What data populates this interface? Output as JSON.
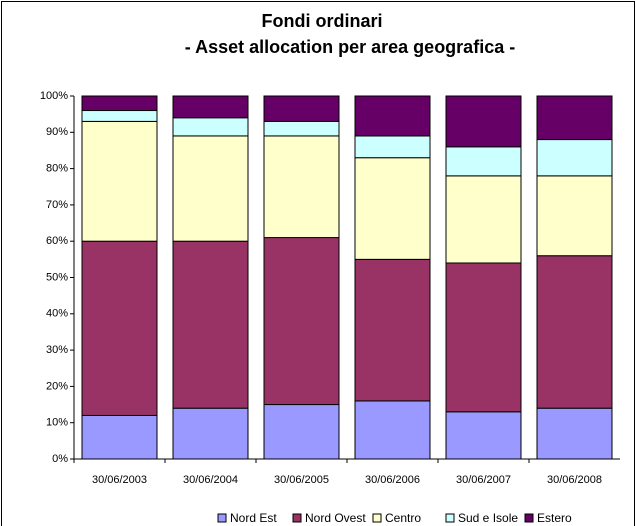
{
  "chart_data": {
    "type": "stacked_bar_100",
    "title": [
      "Fondi ordinari",
      "- Asset allocation per area geografica -"
    ],
    "categories": [
      "30/06/2003",
      "30/06/2004",
      "30/06/2005",
      "30/06/2006",
      "30/06/2007",
      "30/06/2008"
    ],
    "series": [
      {
        "name": "Nord Est",
        "color": "#9999ff",
        "values": [
          12,
          14,
          15,
          16,
          13,
          14
        ]
      },
      {
        "name": "Nord Ovest",
        "color": "#993366",
        "values": [
          48,
          46,
          46,
          39,
          41,
          42
        ]
      },
      {
        "name": "Centro",
        "color": "#ffffcc",
        "values": [
          33,
          29,
          28,
          28,
          24,
          22
        ]
      },
      {
        "name": "Sud e Isole",
        "color": "#ccffff",
        "values": [
          3,
          5,
          4,
          6,
          8,
          10
        ]
      },
      {
        "name": "Estero",
        "color": "#660066",
        "values": [
          4,
          6,
          7,
          11,
          14,
          12
        ]
      }
    ],
    "ylim": [
      0,
      100
    ],
    "yticks": [
      {
        "value": 0,
        "label": "0%"
      },
      {
        "value": 10,
        "label": "10%"
      },
      {
        "value": 20,
        "label": "20%"
      },
      {
        "value": 30,
        "label": "30%"
      },
      {
        "value": 40,
        "label": "40%"
      },
      {
        "value": 50,
        "label": "50%"
      },
      {
        "value": 60,
        "label": "60%"
      },
      {
        "value": 70,
        "label": "70%"
      },
      {
        "value": 80,
        "label": "80%"
      },
      {
        "value": 90,
        "label": "90%"
      },
      {
        "value": 100,
        "label": "100%"
      }
    ],
    "legend": "bottom"
  }
}
